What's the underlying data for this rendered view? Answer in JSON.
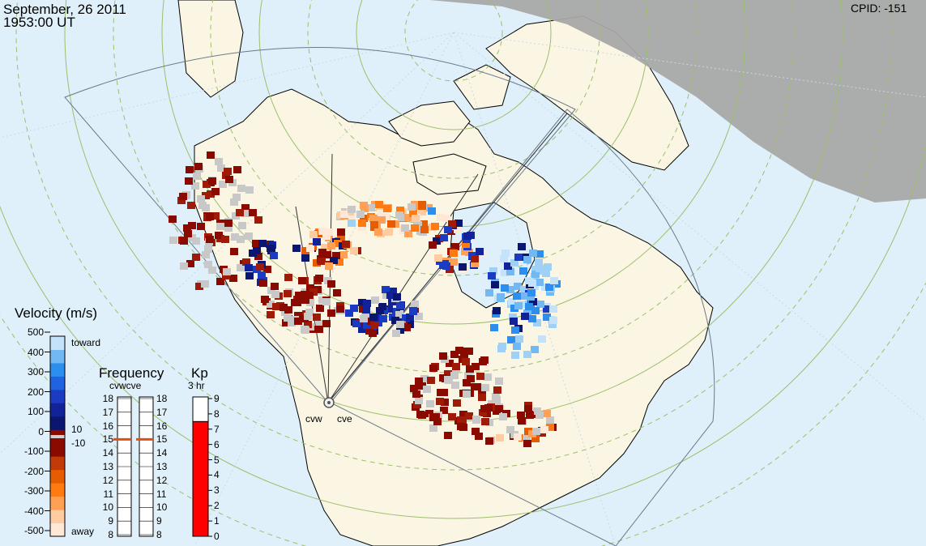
{
  "header": {
    "date": "September, 26 2011",
    "time": "1953:00 UT",
    "cpid": "CPID:  -151"
  },
  "velocity_scale": {
    "title": "Velocity (m/s)",
    "ticks": [
      "500",
      "400",
      "300",
      "200",
      "100",
      "0",
      "-100",
      "-200",
      "-300",
      "-400",
      "-500"
    ],
    "toward_label": "toward",
    "away_label": "away",
    "inner_labels": [
      "10",
      "-10"
    ],
    "colors": [
      "#ffe9d6",
      "#ffcba0",
      "#ffa055",
      "#ff7a10",
      "#e65c00",
      "#c23a08",
      "#8b0a00",
      "#8b0a00",
      "#0a1670",
      "#12239a",
      "#1a3bc2",
      "#1f63e0",
      "#2d8fed",
      "#72b8f2",
      "#c4e3fa"
    ]
  },
  "frequency_scale": {
    "title": "Frequency",
    "radars": "cvwcve",
    "ticks": [
      "18",
      "17",
      "16",
      "15",
      "14",
      "13",
      "12",
      "11",
      "10",
      "9",
      "8"
    ],
    "marker_value": 15,
    "marker_color": "#e05010"
  },
  "kp_scale": {
    "title": "Kp",
    "subtitle": "3 hr",
    "ticks": [
      "9",
      "8",
      "7",
      "6",
      "5",
      "4",
      "3",
      "2",
      "1",
      "0"
    ],
    "fill_value": 7.5,
    "fill_color": "#ff0000"
  },
  "radars": {
    "west_label": "cvw",
    "east_label": "cve"
  },
  "map_colors": {
    "ocean": "#dff0fb",
    "land": "#faf6e3",
    "night": "#a8a8a8",
    "grid": "#9cbf6a",
    "gray_scatter": "#c8c8c8"
  }
}
